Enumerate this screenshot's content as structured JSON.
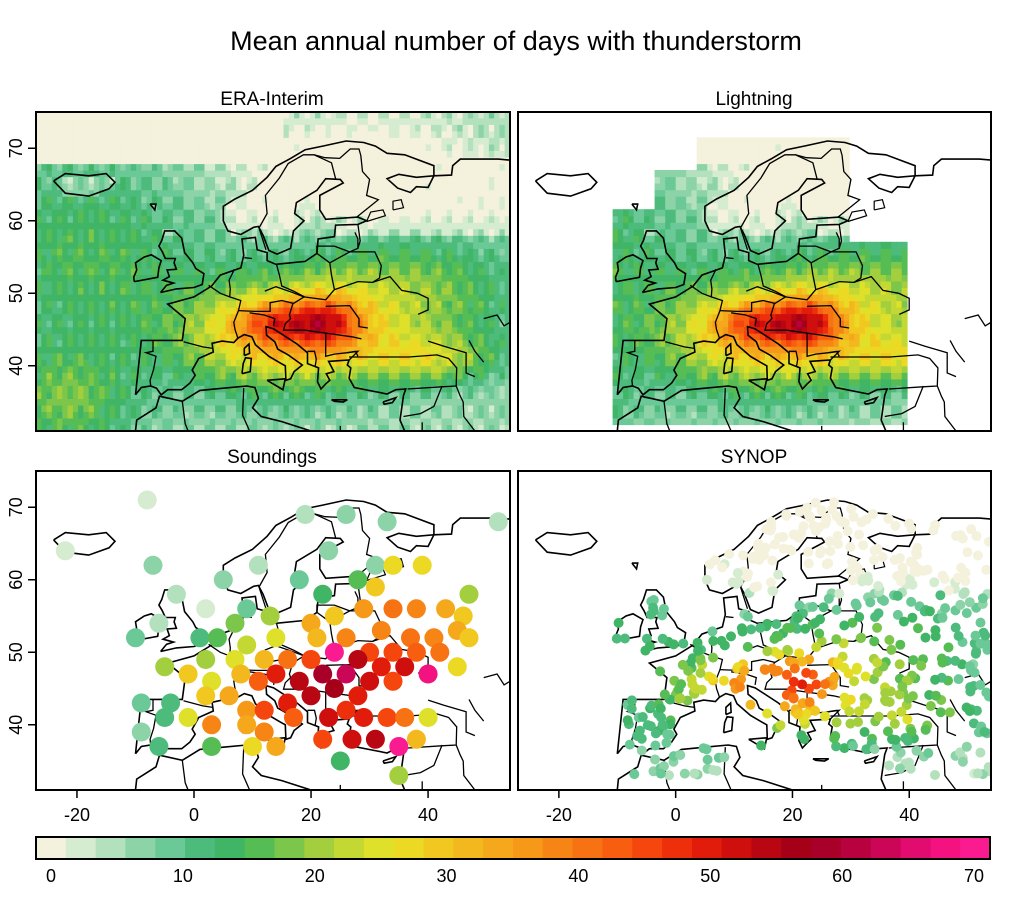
{
  "figure": {
    "title": "Mean annual number of days with thunderstorm"
  },
  "chart_data": {
    "type": "heatmap",
    "title": "Mean annual number of days with thunderstorm",
    "shared_axes": {
      "x_ticks": [
        -20,
        0,
        20,
        40
      ],
      "y_ticks": [
        40,
        50,
        60,
        70
      ],
      "xlim": [
        -27,
        54
      ],
      "ylim": [
        31,
        75
      ]
    },
    "colorbar": {
      "ticks": [
        0,
        10,
        20,
        30,
        40,
        50,
        60,
        70
      ],
      "range": [
        0,
        70
      ],
      "step": 2,
      "colors": [
        "#f4f1dc",
        "#d5ecd0",
        "#b3e0bd",
        "#8cd3a7",
        "#6ac996",
        "#4cbb7c",
        "#41b566",
        "#56bd54",
        "#7cc64b",
        "#a3cf3f",
        "#c4d834",
        "#dfe02a",
        "#ecd924",
        "#f0c820",
        "#f2b81e",
        "#f5a81b",
        "#f69818",
        "#f68515",
        "#f77212",
        "#f85e10",
        "#f5460d",
        "#ed300b",
        "#e21c0a",
        "#cf0f0d",
        "#b80612",
        "#a60018",
        "#a9002a",
        "#b7023f",
        "#cb0657",
        "#e20b6f",
        "#f3127f",
        "#fb1b90"
      ]
    },
    "panels": [
      {
        "id": "era-interim",
        "title": "ERA-Interim",
        "kind": "gridded-field"
      },
      {
        "id": "lightning",
        "title": "Lightning",
        "kind": "gridded-field"
      },
      {
        "id": "soundings",
        "title": "Soundings",
        "kind": "station-points",
        "stations": [
          {
            "lon": -8,
            "lat": 71,
            "v": 2
          },
          {
            "lon": -22,
            "lat": 64,
            "v": 3
          },
          {
            "lon": -7,
            "lat": 62,
            "v": 6
          },
          {
            "lon": -3,
            "lat": 58,
            "v": 4
          },
          {
            "lon": -10,
            "lat": 52,
            "v": 8
          },
          {
            "lon": -6,
            "lat": 54,
            "v": 5
          },
          {
            "lon": 2,
            "lat": 56,
            "v": 3
          },
          {
            "lon": 5,
            "lat": 60,
            "v": 6
          },
          {
            "lon": 9,
            "lat": 56,
            "v": 8
          },
          {
            "lon": 11,
            "lat": 62,
            "v": 5
          },
          {
            "lon": 19,
            "lat": 69,
            "v": 5
          },
          {
            "lon": 26,
            "lat": 69,
            "v": 7
          },
          {
            "lon": 33,
            "lat": 68,
            "v": 6
          },
          {
            "lon": 52,
            "lat": 68,
            "v": 5
          },
          {
            "lon": 23,
            "lat": 64,
            "v": 7
          },
          {
            "lon": 31,
            "lat": 62,
            "v": 6
          },
          {
            "lon": 18,
            "lat": 60,
            "v": 9
          },
          {
            "lon": 22,
            "lat": 58,
            "v": 12
          },
          {
            "lon": 28,
            "lat": 60,
            "v": 14
          },
          {
            "lon": 34,
            "lat": 62,
            "v": 24
          },
          {
            "lon": 39,
            "lat": 62,
            "v": 24
          },
          {
            "lon": 31,
            "lat": 59,
            "v": 26
          },
          {
            "lon": 47,
            "lat": 58,
            "v": 18
          },
          {
            "lon": 29,
            "lat": 56,
            "v": 32
          },
          {
            "lon": 34,
            "lat": 56,
            "v": 36
          },
          {
            "lon": 38,
            "lat": 56,
            "v": 34
          },
          {
            "lon": 43,
            "lat": 56,
            "v": 30
          },
          {
            "lon": 46,
            "lat": 55,
            "v": 26
          },
          {
            "lon": 24,
            "lat": 55,
            "v": 26
          },
          {
            "lon": 20,
            "lat": 54,
            "v": 30
          },
          {
            "lon": 13,
            "lat": 55,
            "v": 18
          },
          {
            "lon": 7,
            "lat": 54,
            "v": 16
          },
          {
            "lon": 32,
            "lat": 53,
            "v": 34
          },
          {
            "lon": 37,
            "lat": 52,
            "v": 36
          },
          {
            "lon": 41,
            "lat": 52,
            "v": 34
          },
          {
            "lon": 45,
            "lat": 53,
            "v": 30
          },
          {
            "lon": 47,
            "lat": 52,
            "v": 26
          },
          {
            "lon": 1,
            "lat": 52,
            "v": 10
          },
          {
            "lon": 4,
            "lat": 52,
            "v": 14
          },
          {
            "lon": 9,
            "lat": 51,
            "v": 20
          },
          {
            "lon": 14,
            "lat": 52,
            "v": 22
          },
          {
            "lon": 21,
            "lat": 52,
            "v": 28
          },
          {
            "lon": 26,
            "lat": 52,
            "v": 34
          },
          {
            "lon": 30,
            "lat": 50,
            "v": 40
          },
          {
            "lon": 34,
            "lat": 50,
            "v": 40
          },
          {
            "lon": 38,
            "lat": 50,
            "v": 38
          },
          {
            "lon": 42,
            "lat": 50,
            "v": 36
          },
          {
            "lon": 45,
            "lat": 48,
            "v": 24
          },
          {
            "lon": -5,
            "lat": 48,
            "v": 18
          },
          {
            "lon": 2,
            "lat": 49,
            "v": 18
          },
          {
            "lon": 7,
            "lat": 49,
            "v": 22
          },
          {
            "lon": 12,
            "lat": 49,
            "v": 28
          },
          {
            "lon": 16,
            "lat": 49,
            "v": 36
          },
          {
            "lon": 20,
            "lat": 49,
            "v": 40
          },
          {
            "lon": 24,
            "lat": 50,
            "v": 66
          },
          {
            "lon": 28,
            "lat": 49,
            "v": 48
          },
          {
            "lon": 32,
            "lat": 48,
            "v": 44
          },
          {
            "lon": 36,
            "lat": 48,
            "v": 46
          },
          {
            "lon": 40,
            "lat": 47,
            "v": 60
          },
          {
            "lon": -1,
            "lat": 47,
            "v": 26
          },
          {
            "lon": 3,
            "lat": 46,
            "v": 22
          },
          {
            "lon": 8,
            "lat": 47,
            "v": 28
          },
          {
            "lon": 11,
            "lat": 46,
            "v": 38
          },
          {
            "lon": 14,
            "lat": 47,
            "v": 44
          },
          {
            "lon": 18,
            "lat": 46,
            "v": 48
          },
          {
            "lon": 22,
            "lat": 47,
            "v": 52
          },
          {
            "lon": 26,
            "lat": 47,
            "v": 56
          },
          {
            "lon": 30,
            "lat": 46,
            "v": 46
          },
          {
            "lon": 34,
            "lat": 46,
            "v": 40
          },
          {
            "lon": -9,
            "lat": 43,
            "v": 8
          },
          {
            "lon": -4,
            "lat": 43,
            "v": 10
          },
          {
            "lon": 2,
            "lat": 44,
            "v": 26
          },
          {
            "lon": 6,
            "lat": 44,
            "v": 30
          },
          {
            "lon": 9,
            "lat": 42,
            "v": 32
          },
          {
            "lon": 12,
            "lat": 42,
            "v": 40
          },
          {
            "lon": 16,
            "lat": 43,
            "v": 44
          },
          {
            "lon": 20,
            "lat": 44,
            "v": 48
          },
          {
            "lon": 24,
            "lat": 45,
            "v": 50
          },
          {
            "lon": 28,
            "lat": 44,
            "v": 44
          },
          {
            "lon": -9,
            "lat": 39,
            "v": 6
          },
          {
            "lon": -5,
            "lat": 41,
            "v": 10
          },
          {
            "lon": -1,
            "lat": 41,
            "v": 22
          },
          {
            "lon": 3,
            "lat": 40,
            "v": 34
          },
          {
            "lon": 9,
            "lat": 40,
            "v": 30
          },
          {
            "lon": 12,
            "lat": 39,
            "v": 34
          },
          {
            "lon": 17,
            "lat": 41,
            "v": 38
          },
          {
            "lon": 23,
            "lat": 41,
            "v": 46
          },
          {
            "lon": 26,
            "lat": 42,
            "v": 42
          },
          {
            "lon": 29,
            "lat": 41,
            "v": 44
          },
          {
            "lon": 33,
            "lat": 41,
            "v": 40
          },
          {
            "lon": 36,
            "lat": 41,
            "v": 36
          },
          {
            "lon": 40,
            "lat": 41,
            "v": 22
          },
          {
            "lon": -6,
            "lat": 37,
            "v": 10
          },
          {
            "lon": 3,
            "lat": 37,
            "v": 14
          },
          {
            "lon": 10,
            "lat": 37,
            "v": 24
          },
          {
            "lon": 14,
            "lat": 37,
            "v": 30
          },
          {
            "lon": 22,
            "lat": 38,
            "v": 40
          },
          {
            "lon": 27,
            "lat": 38,
            "v": 46
          },
          {
            "lon": 31,
            "lat": 38,
            "v": 48
          },
          {
            "lon": 35,
            "lat": 37,
            "v": 62
          },
          {
            "lon": 38,
            "lat": 38,
            "v": 28
          },
          {
            "lon": 25,
            "lat": 35,
            "v": 12
          },
          {
            "lon": 35,
            "lat": 33,
            "v": 18
          }
        ]
      },
      {
        "id": "synop",
        "title": "SYNOP",
        "kind": "station-points",
        "note": "dense network of several hundred stations; values 0-50 days"
      }
    ]
  }
}
